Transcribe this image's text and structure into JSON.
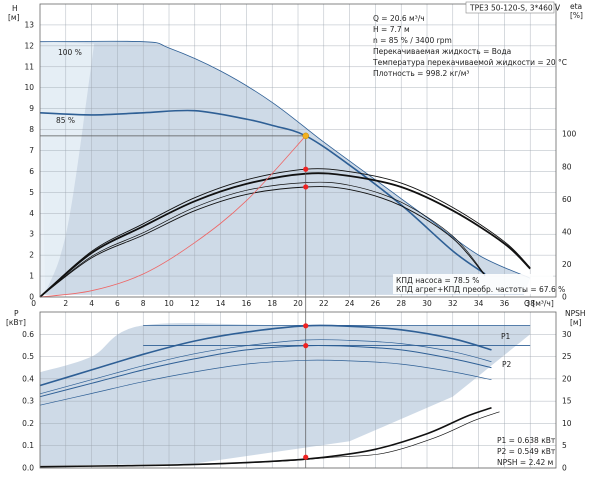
{
  "title": "TPE3 50-120-S, 3*460 V",
  "info": {
    "top": [
      "Q = 20.6 м³/ч",
      "H = 7.7 м",
      "n = 85 % / 3400 rpm",
      "Перекачиваемая жидкость = Вода",
      "Температура перекачиваемой жидкости = 20 °C",
      "Плотность = 998.2 кг/м³"
    ],
    "eff": [
      "КПД насоса = 78.5 %",
      "КПД агрег+КПД преобр. частоты = 67.6 %"
    ],
    "power": [
      "P1 = 0.638 кВт",
      "P2 = 0.549 кВт",
      "NPSH = 2.42 м"
    ]
  },
  "axes": {
    "h_label": "H",
    "h_unit": "[м]",
    "eta_label": "eta",
    "eta_unit": "[%]",
    "q_label": "Q [м³/ч]",
    "p_label": "P",
    "p_unit": "[кВт]",
    "npsh_label": "NPSH",
    "npsh_unit": "[м]"
  },
  "curve_labels": {
    "n100": "100 %",
    "n85": "85 %",
    "p1": "P1",
    "p2": "P2"
  },
  "colors": {
    "region": "#c5d4e3",
    "curve_blue": "#2e5f95",
    "curve_black": "#111111",
    "system_curve": "#ee6666",
    "duty_point": "#f2b01e",
    "marker": "#ee2222",
    "grid": "#9aa3ad"
  },
  "chart_data": [
    {
      "type": "line",
      "name": "head-efficiency",
      "xlabel": "Q [м³/ч]",
      "ylabel": "H [м]",
      "y2label": "eta [%]",
      "xlim": [
        0,
        40
      ],
      "ylim": [
        0,
        14
      ],
      "y2lim": [
        0,
        180
      ],
      "xticks": [
        2,
        4,
        6,
        8,
        10,
        12,
        14,
        16,
        18,
        20,
        22,
        24,
        26,
        28,
        30,
        32,
        34,
        36,
        38
      ],
      "yticks": [
        0,
        1,
        2,
        3,
        4,
        5,
        6,
        7,
        8,
        9,
        10,
        11,
        12,
        13
      ],
      "y2ticks": [
        0,
        20,
        40,
        60,
        80,
        100
      ],
      "grid": true,
      "series": [
        {
          "name": "100 %",
          "x": [
            0,
            8,
            10,
            14,
            18,
            22,
            26,
            30,
            34,
            38
          ],
          "y": [
            12.2,
            12.2,
            11.9,
            10.8,
            9.3,
            7.4,
            5.6,
            3.8,
            2.0,
            0.9
          ]
        },
        {
          "name": "85 %",
          "x": [
            0,
            4,
            8,
            12,
            16,
            18,
            20.6,
            24,
            28,
            32,
            34.5
          ],
          "y": [
            8.8,
            8.7,
            8.8,
            8.9,
            8.5,
            8.2,
            7.7,
            6.3,
            4.4,
            2.2,
            1.1
          ]
        },
        {
          "x": [
            0,
            4,
            8,
            12,
            16,
            20.6,
            24,
            28,
            32,
            34.5
          ],
          "y": [
            0,
            24,
            38,
            53,
            63,
            67.6,
            66,
            56,
            36,
            13
          ]
        },
        {
          "x": [
            0,
            4,
            8,
            12,
            16,
            20.6,
            24,
            28,
            32,
            36,
            38
          ],
          "y": [
            0,
            28,
            45,
            61,
            72,
            78.5,
            77,
            70,
            55,
            34,
            18
          ]
        },
        {
          "x": [
            0,
            4,
            8,
            12,
            16,
            20.6
          ],
          "y": [
            0,
            0.3,
            1.1,
            2.6,
            4.6,
            7.7
          ]
        }
      ],
      "duty_point": {
        "x": 20.6,
        "y": 7.7
      },
      "efficiency_points": [
        78.5,
        67.6
      ]
    },
    {
      "type": "line",
      "name": "power-npsh",
      "xlabel": "Q [м³/ч]",
      "ylabel": "P [кВт]",
      "y2label": "NPSH [м]",
      "xlim": [
        0,
        40
      ],
      "ylim": [
        0,
        0.7
      ],
      "y2lim": [
        0,
        35
      ],
      "yticks": [
        0,
        0.1,
        0.2,
        0.3,
        0.4,
        0.5,
        0.6
      ],
      "y2ticks": [
        0,
        5,
        10,
        15,
        20,
        25,
        30
      ],
      "grid": true,
      "series": [
        {
          "name": "P1",
          "x": [
            0,
            4,
            8,
            12,
            16,
            20.6,
            24,
            28,
            32,
            35
          ],
          "y": [
            0.37,
            0.44,
            0.51,
            0.57,
            0.61,
            0.638,
            0.636,
            0.62,
            0.58,
            0.53
          ]
        },
        {
          "name": "P2",
          "x": [
            0,
            4,
            8,
            12,
            16,
            20.6,
            24,
            28,
            32,
            35
          ],
          "y": [
            0.32,
            0.38,
            0.44,
            0.49,
            0.53,
            0.549,
            0.546,
            0.53,
            0.49,
            0.45
          ]
        },
        {
          "x": [
            0,
            6,
            12,
            18,
            22,
            26,
            30,
            33,
            35
          ],
          "y": [
            0.3,
            0.5,
            0.8,
            1.5,
            2.4,
            4.2,
            7.7,
            11.5,
            13.5
          ]
        }
      ],
      "markers": {
        "p1": 0.638,
        "p2": 0.549,
        "npsh": 2.42
      }
    }
  ]
}
